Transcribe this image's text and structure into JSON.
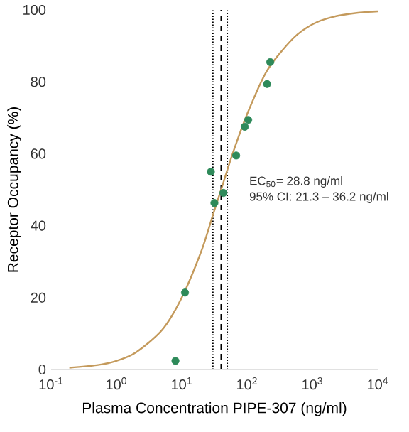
{
  "chart_data": {
    "type": "scatter",
    "xlabel": "Plasma Concentration PIPE-307 (ng/ml)",
    "ylabel": "Receptor Occupancy (%)",
    "log": "x",
    "xlim": [
      0.1,
      10000
    ],
    "ylim": [
      0,
      100
    ],
    "xticks": [
      {
        "value": 0.1,
        "label": "10$^{-1}$"
      },
      {
        "value": 1,
        "label": "10$^{0}$"
      },
      {
        "value": 10,
        "label": "10$^{1}$"
      },
      {
        "value": 100,
        "label": "10$^{2}$"
      },
      {
        "value": 1000,
        "label": "10$^{3}$"
      },
      {
        "value": 10000,
        "label": "10$^{4}$"
      }
    ],
    "yticks": [
      0,
      20,
      40,
      60,
      80,
      100
    ],
    "grid": false,
    "series": [
      {
        "type": "line",
        "marker": "none",
        "line_style": "solid",
        "color": "#c49a5c",
        "x": [
          0.19,
          0.5,
          1,
          2,
          5,
          10,
          20,
          30,
          40,
          60,
          100,
          200,
          500,
          1000,
          2000,
          5000,
          10000
        ],
        "values": [
          0.5,
          1.2,
          2.4,
          4.8,
          11,
          20,
          33,
          43,
          50,
          60,
          71,
          83,
          92,
          96,
          98,
          99.2,
          99.6
        ]
      },
      {
        "marker": "circle",
        "color": "#2e8a5a",
        "x": [
          8.0,
          11.2,
          27.9,
          31.6,
          43.4,
          68,
          92,
          104,
          202,
          226
        ],
        "values": [
          2.4,
          21.4,
          55.0,
          46.3,
          49.1,
          59.5,
          67.5,
          69.4,
          79.4,
          85.5
        ]
      }
    ],
    "ref_lines": [
      {
        "axis": "x",
        "value": 30,
        "color": "#000000",
        "line_style": "dotted"
      },
      {
        "axis": "x",
        "value": 40,
        "color": "#000000",
        "line_style": "dashed"
      },
      {
        "axis": "x",
        "value": 50,
        "color": "#000000",
        "line_style": "dotted"
      }
    ],
    "annotations": [
      "EC$_{50}$= 28.8 ng/ml",
      "95% CI: 21.3 – 36.2 ng/ml"
    ]
  }
}
